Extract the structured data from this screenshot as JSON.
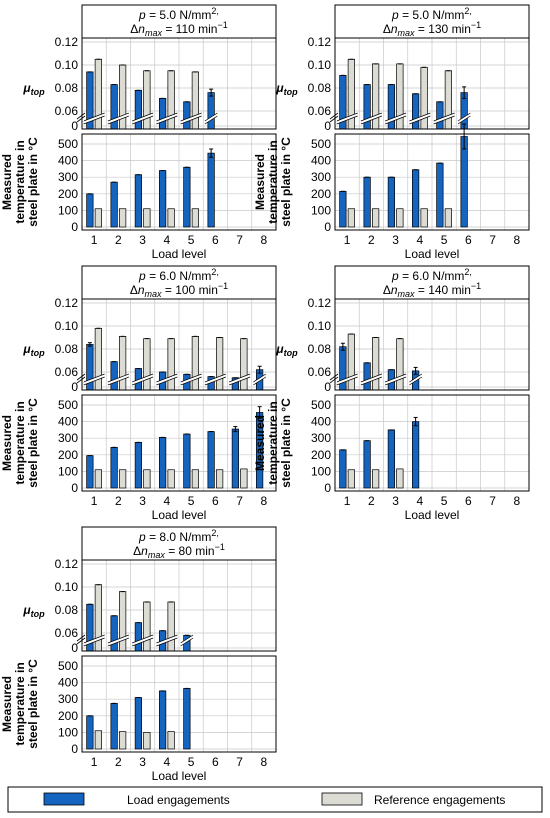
{
  "colors": {
    "load": "#1565c0",
    "reference": "#dcdcd4",
    "grid": "#c8c8c8",
    "frame": "#000000"
  },
  "axis_text": {
    "mu_label": "μ",
    "mu_sub": "top",
    "temp_label": [
      "Measured",
      "temperature in",
      "steel plate in °C"
    ],
    "xlabel": "Load level",
    "mu_ticks": [
      "0.12",
      "0.10",
      "0.08",
      "0.06",
      "0"
    ],
    "temp_ticks": [
      "500",
      "400",
      "300",
      "200",
      "100",
      "0"
    ],
    "x_ticks": [
      "1",
      "2",
      "3",
      "4",
      "5",
      "6",
      "7",
      "8"
    ]
  },
  "legend": {
    "load": "Load engagements",
    "reference": "Reference engagements"
  },
  "chart_data": [
    {
      "type": "bar",
      "title": {
        "p": "p = 5.0 N/mm",
        "sup": "2",
        "dn_pre": "Δn",
        "dn_sub": "max",
        "dn_post": " = 110 min",
        "dn_sup": "−1"
      },
      "categories": [
        1,
        2,
        3,
        4,
        5,
        6,
        7,
        8
      ],
      "mu_ylim": [
        0.05,
        0.12
      ],
      "temp_ylim": [
        0,
        550
      ],
      "mu_load": [
        0.094,
        0.083,
        0.078,
        0.071,
        0.068,
        0.076,
        null,
        null
      ],
      "mu_load_err": [
        0,
        0,
        0,
        0,
        0,
        0.003,
        null,
        null
      ],
      "mu_ref": [
        0.105,
        0.1,
        0.095,
        0.095,
        0.094,
        null,
        null,
        null
      ],
      "temp_load": [
        200,
        270,
        315,
        340,
        360,
        445,
        null,
        null
      ],
      "temp_load_err": [
        0,
        0,
        0,
        0,
        0,
        25,
        null,
        null
      ],
      "temp_ref": [
        110,
        110,
        110,
        110,
        110,
        null,
        null,
        null
      ]
    },
    {
      "type": "bar",
      "title": {
        "p": "p = 5.0 N/mm",
        "sup": "2",
        "dn_pre": "Δn",
        "dn_sub": "max",
        "dn_post": " = 130 min",
        "dn_sup": "−1"
      },
      "categories": [
        1,
        2,
        3,
        4,
        5,
        6,
        7,
        8
      ],
      "mu_ylim": [
        0.05,
        0.12
      ],
      "temp_ylim": [
        0,
        550
      ],
      "mu_load": [
        0.091,
        0.083,
        0.083,
        0.075,
        0.068,
        0.076,
        null,
        null
      ],
      "mu_load_err": [
        0,
        0,
        0,
        0,
        0,
        0.005,
        null,
        null
      ],
      "mu_ref": [
        0.105,
        0.101,
        0.101,
        0.098,
        0.095,
        null,
        null,
        null
      ],
      "temp_load": [
        215,
        300,
        300,
        345,
        385,
        545,
        null,
        null
      ],
      "temp_load_err": [
        0,
        0,
        0,
        0,
        0,
        75,
        null,
        null
      ],
      "temp_ref": [
        110,
        110,
        110,
        110,
        110,
        null,
        null,
        null
      ]
    },
    {
      "type": "bar",
      "title": {
        "p": "p = 6.0 N/mm",
        "sup": "2",
        "dn_pre": "Δn",
        "dn_sub": "max",
        "dn_post": " = 100 min",
        "dn_sup": "−1"
      },
      "categories": [
        1,
        2,
        3,
        4,
        5,
        6,
        7,
        8
      ],
      "mu_ylim": [
        0.05,
        0.12
      ],
      "temp_ylim": [
        0,
        550
      ],
      "mu_load": [
        0.084,
        0.069,
        0.063,
        0.06,
        0.058,
        0.056,
        0.055,
        0.062
      ],
      "mu_load_err": [
        0.0015,
        0,
        0,
        0,
        0,
        0,
        0,
        0.003
      ],
      "mu_ref": [
        0.098,
        0.091,
        0.089,
        0.089,
        0.091,
        0.09,
        0.089,
        null
      ],
      "temp_load": [
        195,
        245,
        275,
        305,
        325,
        340,
        355,
        455
      ],
      "temp_load_err": [
        0,
        0,
        0,
        0,
        0,
        0,
        15,
        35
      ],
      "temp_ref": [
        110,
        110,
        110,
        110,
        110,
        110,
        115,
        null
      ]
    },
    {
      "type": "bar",
      "title": {
        "p": "p = 6.0 N/mm",
        "sup": "2",
        "dn_pre": "Δn",
        "dn_sub": "max",
        "dn_post": " = 140 min",
        "dn_sup": "−1"
      },
      "categories": [
        1,
        2,
        3,
        4,
        5,
        6,
        7,
        8
      ],
      "mu_ylim": [
        0.05,
        0.12
      ],
      "temp_ylim": [
        0,
        550
      ],
      "mu_load": [
        0.082,
        0.068,
        0.062,
        0.061,
        null,
        null,
        null,
        null
      ],
      "mu_load_err": [
        0.003,
        0,
        0,
        0.003,
        null,
        null,
        null,
        null
      ],
      "mu_ref": [
        0.093,
        0.09,
        0.089,
        null,
        null,
        null,
        null,
        null
      ],
      "temp_load": [
        230,
        285,
        350,
        400,
        null,
        null,
        null,
        null
      ],
      "temp_load_err": [
        0,
        0,
        0,
        25,
        null,
        null,
        null,
        null
      ],
      "temp_ref": [
        110,
        110,
        115,
        null,
        null,
        null,
        null,
        null
      ]
    },
    {
      "type": "bar",
      "title": {
        "p": "p = 8.0 N/mm",
        "sup": "2",
        "dn_pre": "Δn",
        "dn_sub": "max",
        "dn_post": " = 80 min",
        "dn_sup": "−1"
      },
      "categories": [
        1,
        2,
        3,
        4,
        5,
        6,
        7,
        8
      ],
      "mu_ylim": [
        0.05,
        0.12
      ],
      "temp_ylim": [
        0,
        550
      ],
      "mu_load": [
        0.085,
        0.075,
        0.069,
        0.062,
        0.058,
        null,
        null,
        null
      ],
      "mu_load_err": [
        0,
        0,
        0,
        0,
        0,
        null,
        null,
        null
      ],
      "mu_ref": [
        0.102,
        0.096,
        0.087,
        0.087,
        null,
        null,
        null,
        null
      ],
      "temp_load": [
        200,
        275,
        310,
        350,
        365,
        null,
        null,
        null
      ],
      "temp_load_err": [
        0,
        0,
        0,
        0,
        0,
        null,
        null,
        null
      ],
      "temp_ref": [
        110,
        105,
        100,
        105,
        null,
        null,
        null,
        null
      ]
    }
  ]
}
